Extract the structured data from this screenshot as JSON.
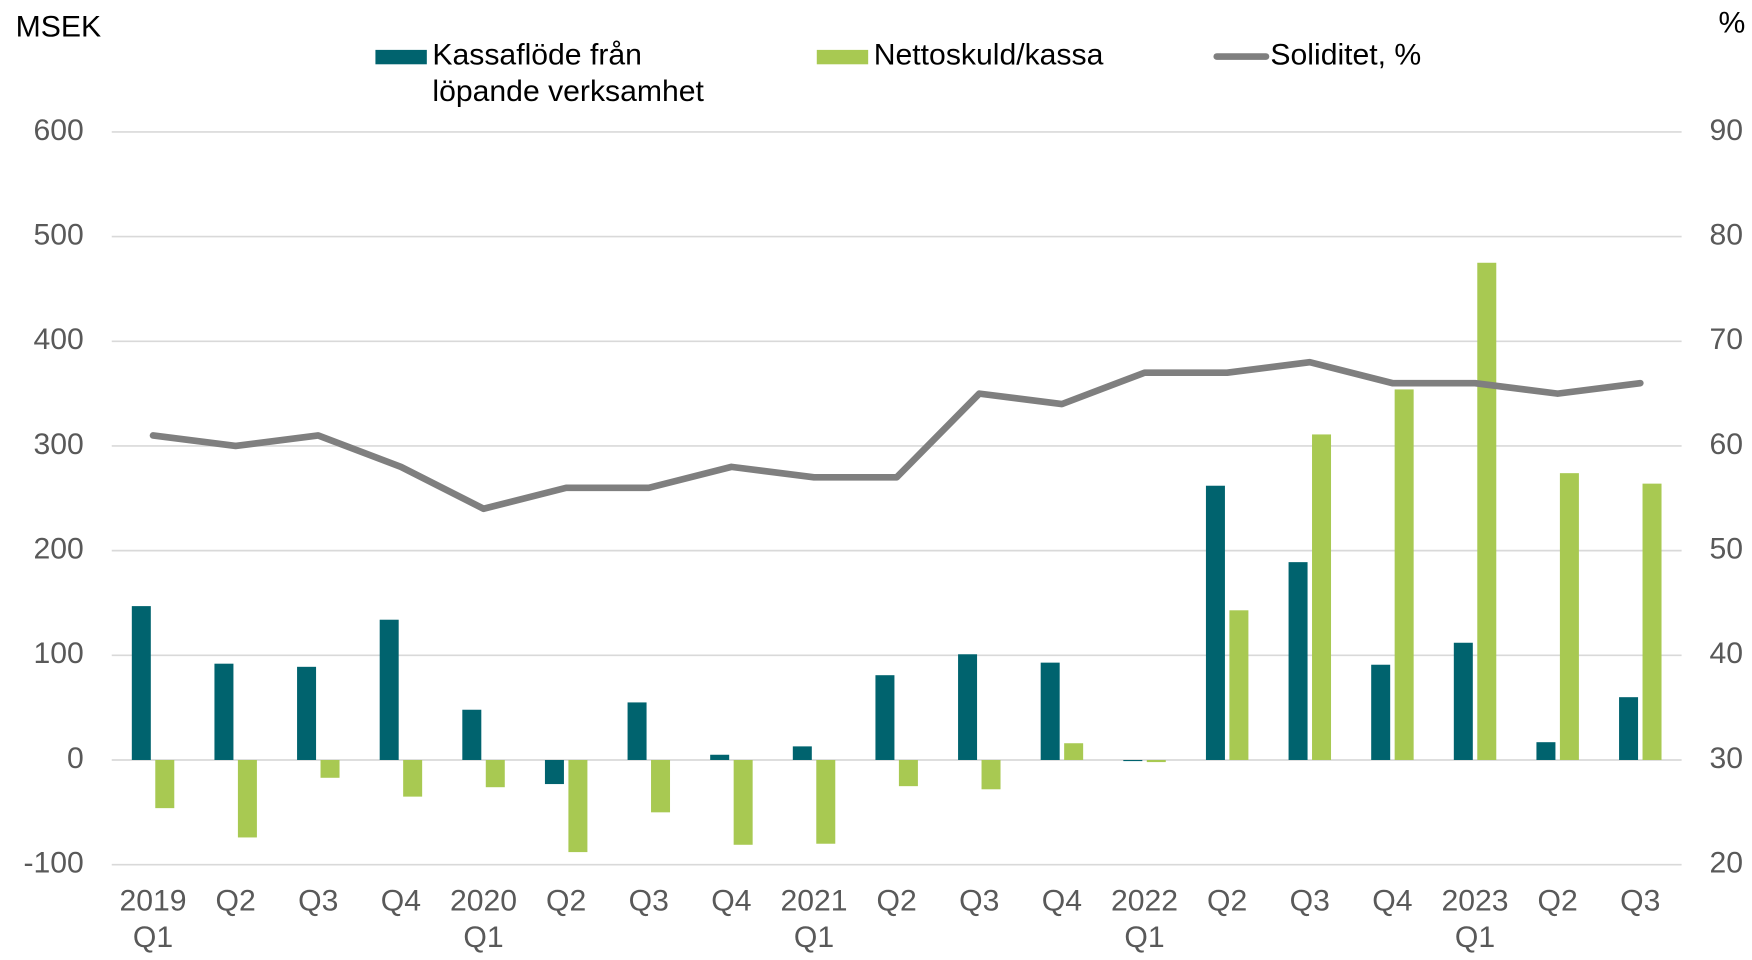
{
  "chart_data": {
    "type": "bar",
    "y_label": "MSEK",
    "y2_label": "%",
    "categories": [
      "2019 Q1",
      "Q2",
      "Q3",
      "Q4",
      "2020 Q1",
      "Q2",
      "Q3",
      "Q4",
      "2021 Q1",
      "Q2",
      "Q3",
      "Q4",
      "2022 Q1",
      "Q2",
      "Q3",
      "Q4",
      "2023 Q1",
      "Q2",
      "Q3"
    ],
    "series": [
      {
        "name": "Kassaflöde från löpande verksamhet",
        "type": "bar",
        "color": "#00636e",
        "values": [
          147,
          92,
          89,
          134,
          48,
          -23,
          55,
          5,
          13,
          81,
          101,
          93,
          -1,
          262,
          189,
          91,
          112,
          17,
          60
        ]
      },
      {
        "name": "Nettoskuld/kassa",
        "type": "bar",
        "color": "#a8c952",
        "values": [
          -46,
          -74,
          -17,
          -35,
          -26,
          -88,
          -50,
          -81,
          -80,
          -25,
          -28,
          16,
          -2,
          143,
          311,
          354,
          475,
          274,
          264
        ]
      },
      {
        "name": "Soliditet, %",
        "type": "line",
        "axis": "y2",
        "color": "#7f7f7f",
        "values": [
          61,
          60,
          61,
          58,
          54,
          56,
          56,
          58,
          57,
          57,
          65,
          64,
          67,
          67,
          68,
          66,
          66,
          65,
          66
        ]
      }
    ],
    "ylim": [
      -100,
      600
    ],
    "yticks": [
      -100,
      0,
      100,
      200,
      300,
      400,
      500,
      600
    ],
    "y2lim": [
      20,
      90
    ],
    "y2ticks": [
      20,
      30,
      40,
      50,
      60,
      70,
      80,
      90
    ],
    "grid": true
  }
}
